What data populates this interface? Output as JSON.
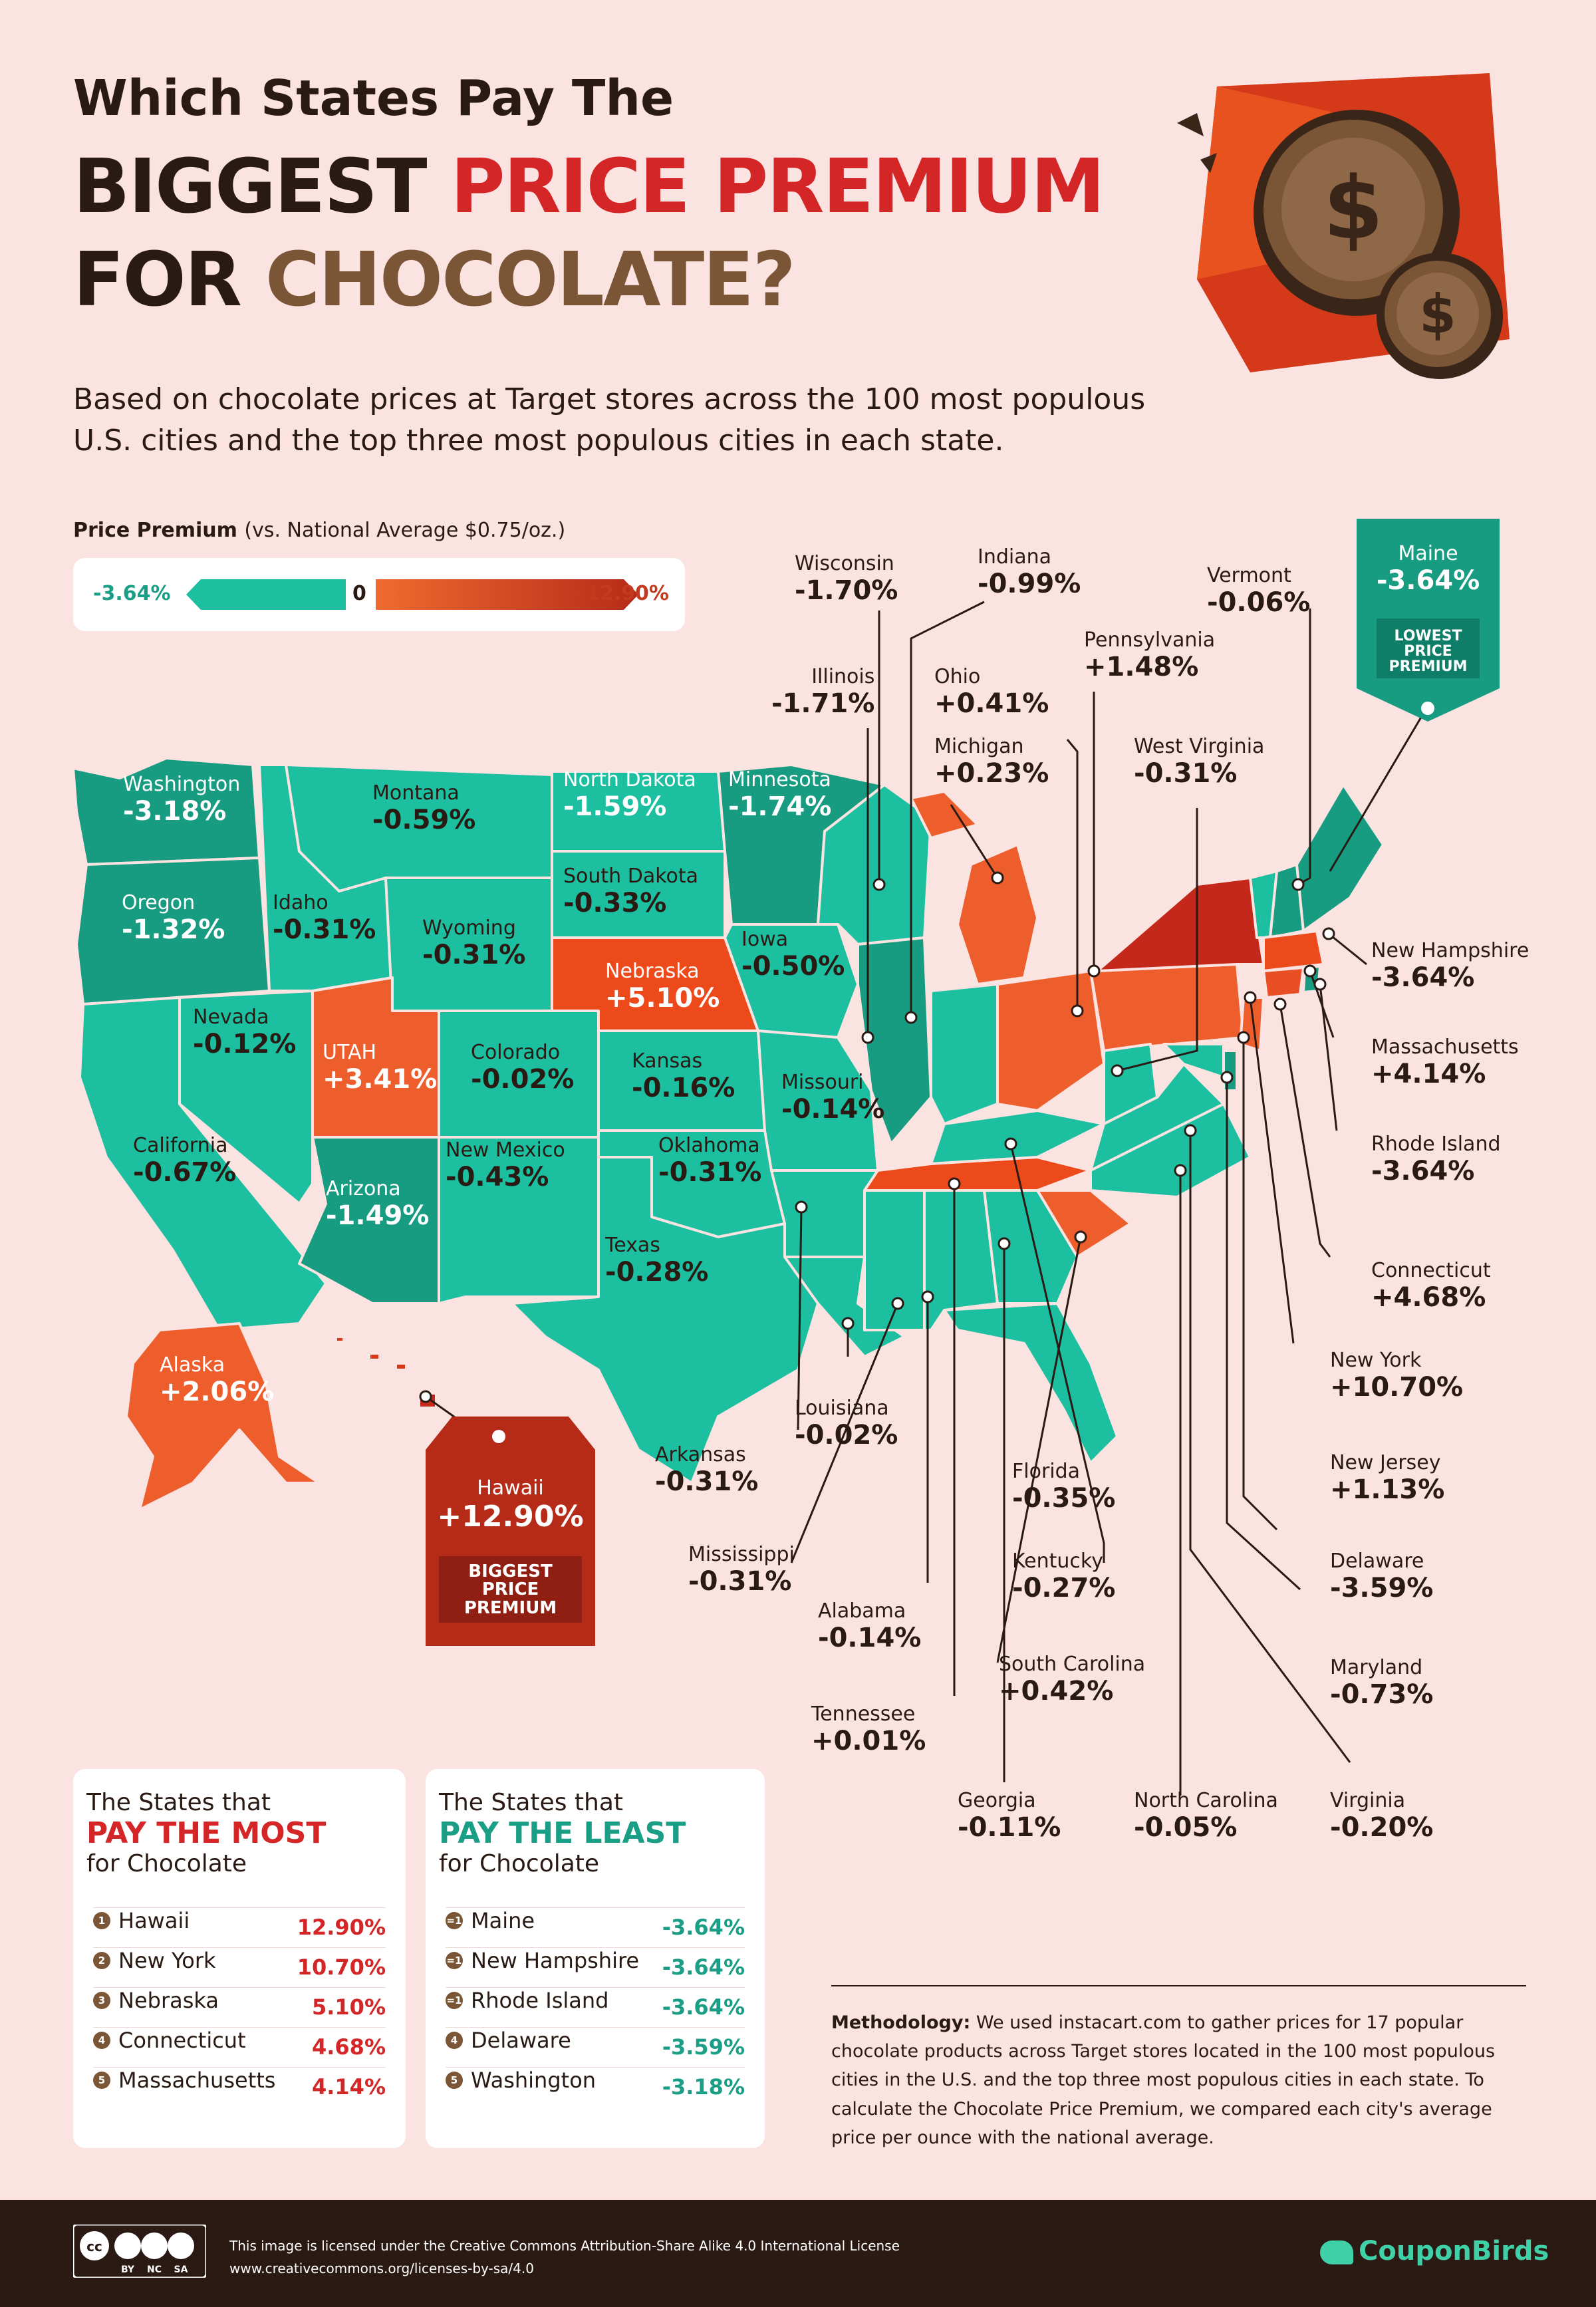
{
  "title": {
    "line1": "Which States Pay The",
    "line2_a": "BIGGEST ",
    "line2_b": "PRICE PREMIUM",
    "line3_a": "FOR ",
    "line3_b": "CHOCOLATE?"
  },
  "subtitle": "Based on chocolate prices at Target stores across the 100 most populous U.S. cities and the top three most populous cities in each state.",
  "legend": {
    "title": "Price Premium",
    "note": "(vs. National Average $0.75/oz.)",
    "min": "-3.64%",
    "zero": "0",
    "max": "+12.90%",
    "colors": {
      "low": "#1cbfa0",
      "high": "#b52b18"
    }
  },
  "states": {
    "washington": {
      "name": "Washington",
      "value": "-3.18%"
    },
    "oregon": {
      "name": "Oregon",
      "value": "-1.32%"
    },
    "california": {
      "name": "California",
      "value": "-0.67%"
    },
    "nevada": {
      "name": "Nevada",
      "value": "-0.12%"
    },
    "idaho": {
      "name": "Idaho",
      "value": "-0.31%"
    },
    "montana": {
      "name": "Montana",
      "value": "-0.59%"
    },
    "wyoming": {
      "name": "Wyoming",
      "value": "-0.31%"
    },
    "utah": {
      "name": "UTAH",
      "value": "+3.41%"
    },
    "arizona": {
      "name": "Arizona",
      "value": "-1.49%"
    },
    "colorado": {
      "name": "Colorado",
      "value": "-0.02%"
    },
    "new_mexico": {
      "name": "New Mexico",
      "value": "-0.43%"
    },
    "north_dakota": {
      "name": "North Dakota",
      "value": "-1.59%"
    },
    "south_dakota": {
      "name": "South Dakota",
      "value": "-0.33%"
    },
    "nebraska": {
      "name": "Nebraska",
      "value": "+5.10%"
    },
    "kansas": {
      "name": "Kansas",
      "value": "-0.16%"
    },
    "oklahoma": {
      "name": "Oklahoma",
      "value": "-0.31%"
    },
    "texas": {
      "name": "Texas",
      "value": "-0.28%"
    },
    "minnesota": {
      "name": "Minnesota",
      "value": "-1.74%"
    },
    "iowa": {
      "name": "Iowa",
      "value": "-0.50%"
    },
    "missouri": {
      "name": "Missouri",
      "value": "-0.14%"
    },
    "alaska": {
      "name": "Alaska",
      "value": "+2.06%"
    },
    "hawaii": {
      "name": "Hawaii",
      "value": "+12.90%",
      "tag": "BIGGEST PRICE PREMIUM"
    },
    "wisconsin": {
      "name": "Wisconsin",
      "value": "-1.70%"
    },
    "illinois": {
      "name": "Illinois",
      "value": "-1.71%"
    },
    "indiana": {
      "name": "Indiana",
      "value": "-0.99%"
    },
    "ohio": {
      "name": "Ohio",
      "value": "+0.41%"
    },
    "michigan": {
      "name": "Michigan",
      "value": "+0.23%"
    },
    "pennsylvania": {
      "name": "Pennsylvania",
      "value": "+1.48%"
    },
    "west_virginia": {
      "name": "West Virginia",
      "value": "-0.31%"
    },
    "vermont": {
      "name": "Vermont",
      "value": "-0.06%"
    },
    "maine": {
      "name": "Maine",
      "value": "-3.64%",
      "tag": "LOWEST PRICE PREMIUM"
    },
    "new_hampshire": {
      "name": "New Hampshire",
      "value": "-3.64%"
    },
    "massachusetts": {
      "name": "Massachusetts",
      "value": "+4.14%"
    },
    "rhode_island": {
      "name": "Rhode Island",
      "value": "-3.64%"
    },
    "connecticut": {
      "name": "Connecticut",
      "value": "+4.68%"
    },
    "new_york": {
      "name": "New York",
      "value": "+10.70%"
    },
    "new_jersey": {
      "name": "New Jersey",
      "value": "+1.13%"
    },
    "delaware": {
      "name": "Delaware",
      "value": "-3.59%"
    },
    "maryland": {
      "name": "Maryland",
      "value": "-0.73%"
    },
    "virginia": {
      "name": "Virginia",
      "value": "-0.20%"
    },
    "north_carolina": {
      "name": "North Carolina",
      "value": "-0.05%"
    },
    "georgia": {
      "name": "Georgia",
      "value": "-0.11%"
    },
    "south_carolina": {
      "name": "South Carolina",
      "value": "+0.42%"
    },
    "kentucky": {
      "name": "Kentucky",
      "value": "-0.27%"
    },
    "florida": {
      "name": "Florida",
      "value": "-0.35%"
    },
    "tennessee": {
      "name": "Tennessee",
      "value": "+0.01%"
    },
    "alabama": {
      "name": "Alabama",
      "value": "-0.14%"
    },
    "mississippi": {
      "name": "Mississippi",
      "value": "-0.31%"
    },
    "louisiana": {
      "name": "Louisiana",
      "value": "-0.02%"
    },
    "arkansas": {
      "name": "Arkansas",
      "value": "-0.31%"
    }
  },
  "most": {
    "h1": "The States that",
    "h2": "PAY THE MOST",
    "h3": "for Chocolate",
    "rows": [
      {
        "rank": "1",
        "state": "Hawaii",
        "value": "12.90%"
      },
      {
        "rank": "2",
        "state": "New York",
        "value": "10.70%"
      },
      {
        "rank": "3",
        "state": "Nebraska",
        "value": "5.10%"
      },
      {
        "rank": "4",
        "state": "Connecticut",
        "value": "4.68%"
      },
      {
        "rank": "5",
        "state": "Massachusetts",
        "value": "4.14%"
      }
    ]
  },
  "least": {
    "h1": "The States that",
    "h2": "PAY THE LEAST",
    "h3": "for Chocolate",
    "rows": [
      {
        "rank": "=1",
        "state": "Maine",
        "value": "-3.64%"
      },
      {
        "rank": "=1",
        "state": "New Hampshire",
        "value": "-3.64%"
      },
      {
        "rank": "=1",
        "state": "Rhode Island",
        "value": "-3.64%"
      },
      {
        "rank": "4",
        "state": "Delaware",
        "value": "-3.59%"
      },
      {
        "rank": "5",
        "state": "Washington",
        "value": "-3.18%"
      }
    ]
  },
  "methodology": {
    "label": "Methodology:",
    "text": " We used instacart.com to gather prices for 17 popular chocolate products across Target stores located in the 100 most populous cities in the U.S. and the top three most populous cities in each state. To calculate the Chocolate Price Premium, we compared each city's average price per ounce with the national average."
  },
  "footer": {
    "license": "This image is licensed under the Creative Commons Attribution-Share Alike 4.0 International License",
    "url": "www.creativecommons.org/licenses-by-sa/4.0",
    "cc_labels": [
      "BY",
      "NC",
      "SA"
    ],
    "brand": "CouponBirds"
  }
}
